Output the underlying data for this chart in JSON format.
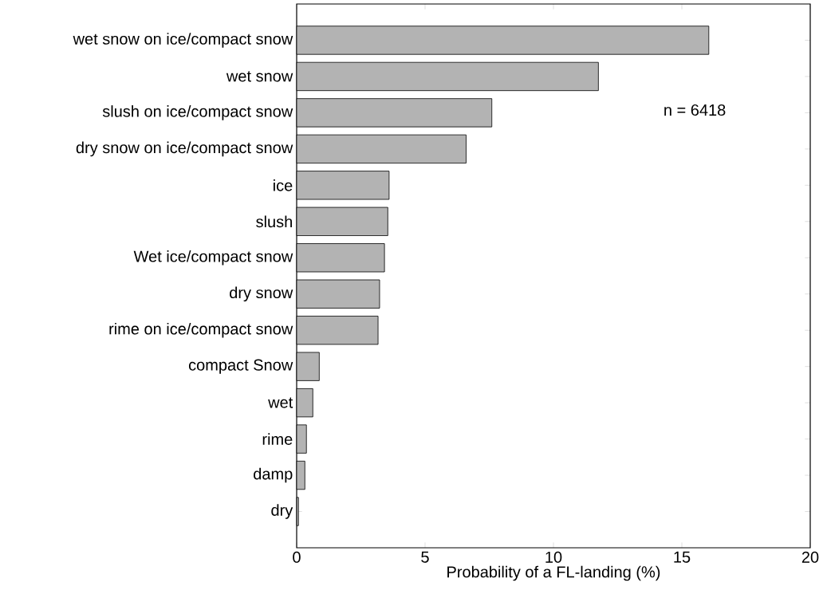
{
  "chart_data": {
    "type": "bar",
    "orientation": "horizontal",
    "categories": [
      "wet snow on ice/compact snow",
      "wet snow",
      "slush on ice/compact snow",
      "dry snow on ice/compact snow",
      "ice",
      "slush",
      "Wet ice/compact snow",
      "dry snow",
      "rime on ice/compact snow",
      "compact Snow",
      "wet",
      "rime",
      "damp",
      "dry"
    ],
    "values": [
      16.05,
      11.75,
      7.6,
      6.6,
      3.6,
      3.55,
      3.42,
      3.23,
      3.17,
      0.88,
      0.63,
      0.38,
      0.32,
      0.07
    ],
    "color": "#b3b3b3",
    "xlim": [
      0,
      20
    ],
    "xticks": [
      0,
      5,
      10,
      15,
      20
    ],
    "xlabel": "Probability of a FL-landing (%)",
    "annotations": [
      "n = 6418"
    ]
  }
}
